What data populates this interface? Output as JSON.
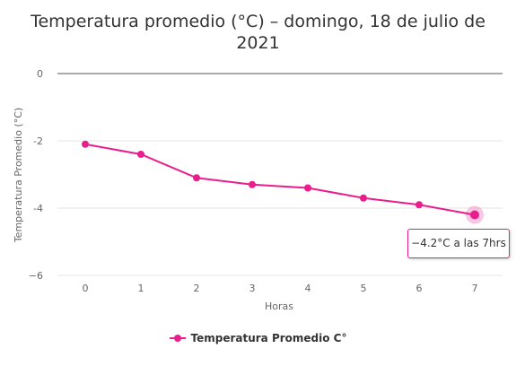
{
  "chart_data": {
    "type": "line",
    "title": "Temperatura promedio (°C) – domingo, 18 de julio de 2021",
    "xlabel": "Horas",
    "ylabel": "Temperatura Promedio (°C)",
    "categories": [
      "0",
      "1",
      "2",
      "3",
      "4",
      "5",
      "6",
      "7"
    ],
    "ylim": [
      -6,
      0
    ],
    "yticks": [
      0,
      -2,
      -4,
      -6
    ],
    "yticklabels": [
      "0",
      "-2",
      "-4",
      "−6"
    ],
    "grid": true,
    "legend": "bottom-center",
    "series": [
      {
        "name": "Temperatura Promedio C°",
        "color": "#e91e8c",
        "values": [
          -2.1,
          -2.4,
          -3.1,
          -3.3,
          -3.4,
          -3.7,
          -3.9,
          -4.2
        ]
      }
    ],
    "highlight_index": 7,
    "tooltip": "−4.2°C a las 7hrs"
  }
}
